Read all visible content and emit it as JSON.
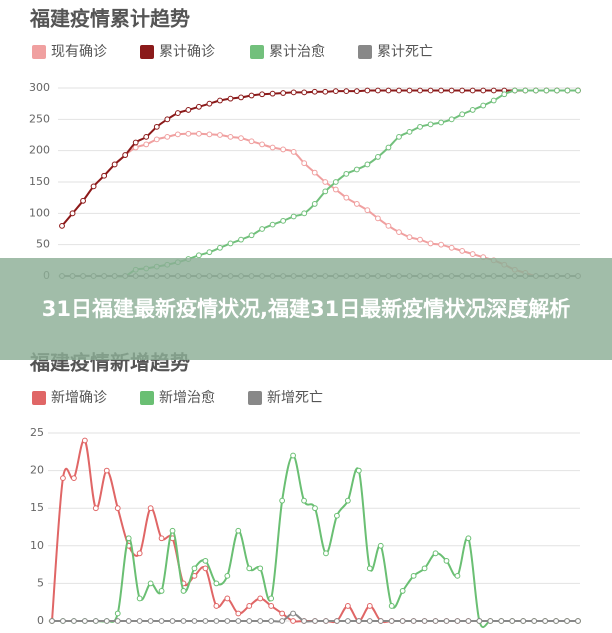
{
  "chart_data": [
    {
      "type": "line",
      "title": "福建疫情累计趋势",
      "categories": [
        null,
        null,
        null,
        null,
        null,
        null,
        null,
        null,
        null,
        null,
        null,
        null,
        null,
        null,
        null,
        null,
        null,
        null,
        null,
        null,
        null,
        null,
        null,
        null,
        null,
        null,
        null,
        null,
        null,
        null,
        null,
        null,
        null,
        null,
        null,
        null,
        null,
        null,
        null,
        null,
        null,
        null,
        null,
        null,
        null,
        null,
        null,
        null,
        null,
        null
      ],
      "series": [
        {
          "name": "现有确诊",
          "color": "#f0a0a0",
          "values": [
            80,
            100,
            120,
            143,
            160,
            178,
            193,
            205,
            210,
            218,
            222,
            226,
            227,
            227,
            226,
            225,
            222,
            220,
            215,
            210,
            205,
            202,
            198,
            180,
            165,
            150,
            138,
            125,
            115,
            105,
            92,
            80,
            70,
            62,
            58,
            52,
            50,
            45,
            40,
            35,
            30,
            25,
            18,
            10,
            5,
            0,
            0,
            0,
            0,
            0
          ]
        },
        {
          "name": "累计确诊",
          "color": "#8b1a1a",
          "values": [
            80,
            100,
            120,
            143,
            160,
            178,
            193,
            213,
            222,
            238,
            250,
            260,
            265,
            270,
            275,
            280,
            283,
            285,
            288,
            290,
            291,
            292,
            293,
            293,
            294,
            294,
            295,
            295,
            295,
            296,
            296,
            296,
            296,
            296,
            296,
            296,
            296,
            296,
            296,
            296,
            296,
            296,
            296,
            296,
            296,
            296,
            296,
            296,
            296,
            296
          ]
        },
        {
          "name": "累计治愈",
          "color": "#72c07c",
          "values": [
            0,
            0,
            0,
            0,
            0,
            0,
            0,
            10,
            12,
            15,
            18,
            22,
            27,
            33,
            38,
            45,
            52,
            58,
            65,
            75,
            82,
            88,
            95,
            100,
            115,
            135,
            150,
            163,
            170,
            178,
            190,
            205,
            222,
            230,
            238,
            242,
            245,
            250,
            258,
            265,
            272,
            280,
            290,
            296,
            296,
            296,
            296,
            296,
            296,
            296
          ]
        },
        {
          "name": "累计死亡",
          "color": "#888888",
          "values": [
            0,
            0,
            0,
            0,
            0,
            0,
            0,
            0,
            0,
            0,
            0,
            0,
            0,
            0,
            0,
            0,
            0,
            0,
            0,
            0,
            0,
            0,
            0,
            0,
            0,
            0,
            0,
            0,
            0,
            0,
            0,
            0,
            0,
            0,
            0,
            0,
            0,
            0,
            0,
            0,
            0,
            0,
            0,
            0,
            0,
            0,
            0,
            0,
            0,
            0
          ]
        }
      ],
      "ylim": [
        0,
        300
      ],
      "yticks": [
        0,
        50,
        100,
        150,
        200,
        250,
        300
      ],
      "grid": true
    },
    {
      "type": "line",
      "title": "福建疫情新增趋势",
      "categories": [
        null,
        null,
        null,
        null,
        null,
        null,
        null,
        null,
        null,
        null,
        null,
        null,
        null,
        null,
        null,
        null,
        null,
        null,
        null,
        null,
        null,
        null,
        null,
        null,
        null,
        null,
        null,
        null,
        null,
        null,
        null,
        null,
        null,
        null,
        null,
        null,
        null,
        null,
        null,
        null,
        null,
        null,
        null,
        null,
        null,
        null,
        null,
        null,
        null
      ],
      "series": [
        {
          "name": "新增确诊",
          "color": "#e06666",
          "values": [
            0,
            19,
            19,
            24,
            15,
            20,
            15,
            10,
            9,
            15,
            11,
            11,
            5,
            6,
            7,
            2,
            3,
            1,
            2,
            3,
            2,
            1,
            0,
            0,
            0,
            0,
            0,
            2,
            0,
            2,
            0,
            0,
            0,
            0,
            0,
            0,
            0,
            0,
            0,
            0,
            0,
            0,
            0,
            0,
            0,
            0,
            0,
            0,
            0
          ]
        },
        {
          "name": "新增治愈",
          "color": "#6abf73",
          "values": [
            0,
            0,
            0,
            0,
            0,
            0,
            1,
            11,
            3,
            5,
            4,
            12,
            4,
            7,
            8,
            5,
            6,
            12,
            7,
            7,
            3,
            16,
            22,
            16,
            15,
            9,
            14,
            16,
            20,
            7,
            10,
            2,
            4,
            6,
            7,
            9,
            8,
            6,
            11,
            0,
            0,
            0,
            0,
            0,
            0,
            0,
            0,
            0,
            0
          ]
        },
        {
          "name": "新增死亡",
          "color": "#888888",
          "values": [
            0,
            0,
            0,
            0,
            0,
            0,
            0,
            0,
            0,
            0,
            0,
            0,
            0,
            0,
            0,
            0,
            0,
            0,
            0,
            0,
            0,
            0,
            1,
            0,
            0,
            0,
            0,
            0,
            0,
            0,
            0,
            0,
            0,
            0,
            0,
            0,
            0,
            0,
            0,
            0,
            0,
            0,
            0,
            0,
            0,
            0,
            0,
            0,
            0
          ]
        }
      ],
      "ylim": [
        0,
        25
      ],
      "yticks": [
        0,
        5,
        10,
        15,
        20,
        25
      ],
      "grid": true
    }
  ],
  "banner": {
    "text": "31日福建最新疫情状况,福建31日最新疫情状况深度解析"
  }
}
